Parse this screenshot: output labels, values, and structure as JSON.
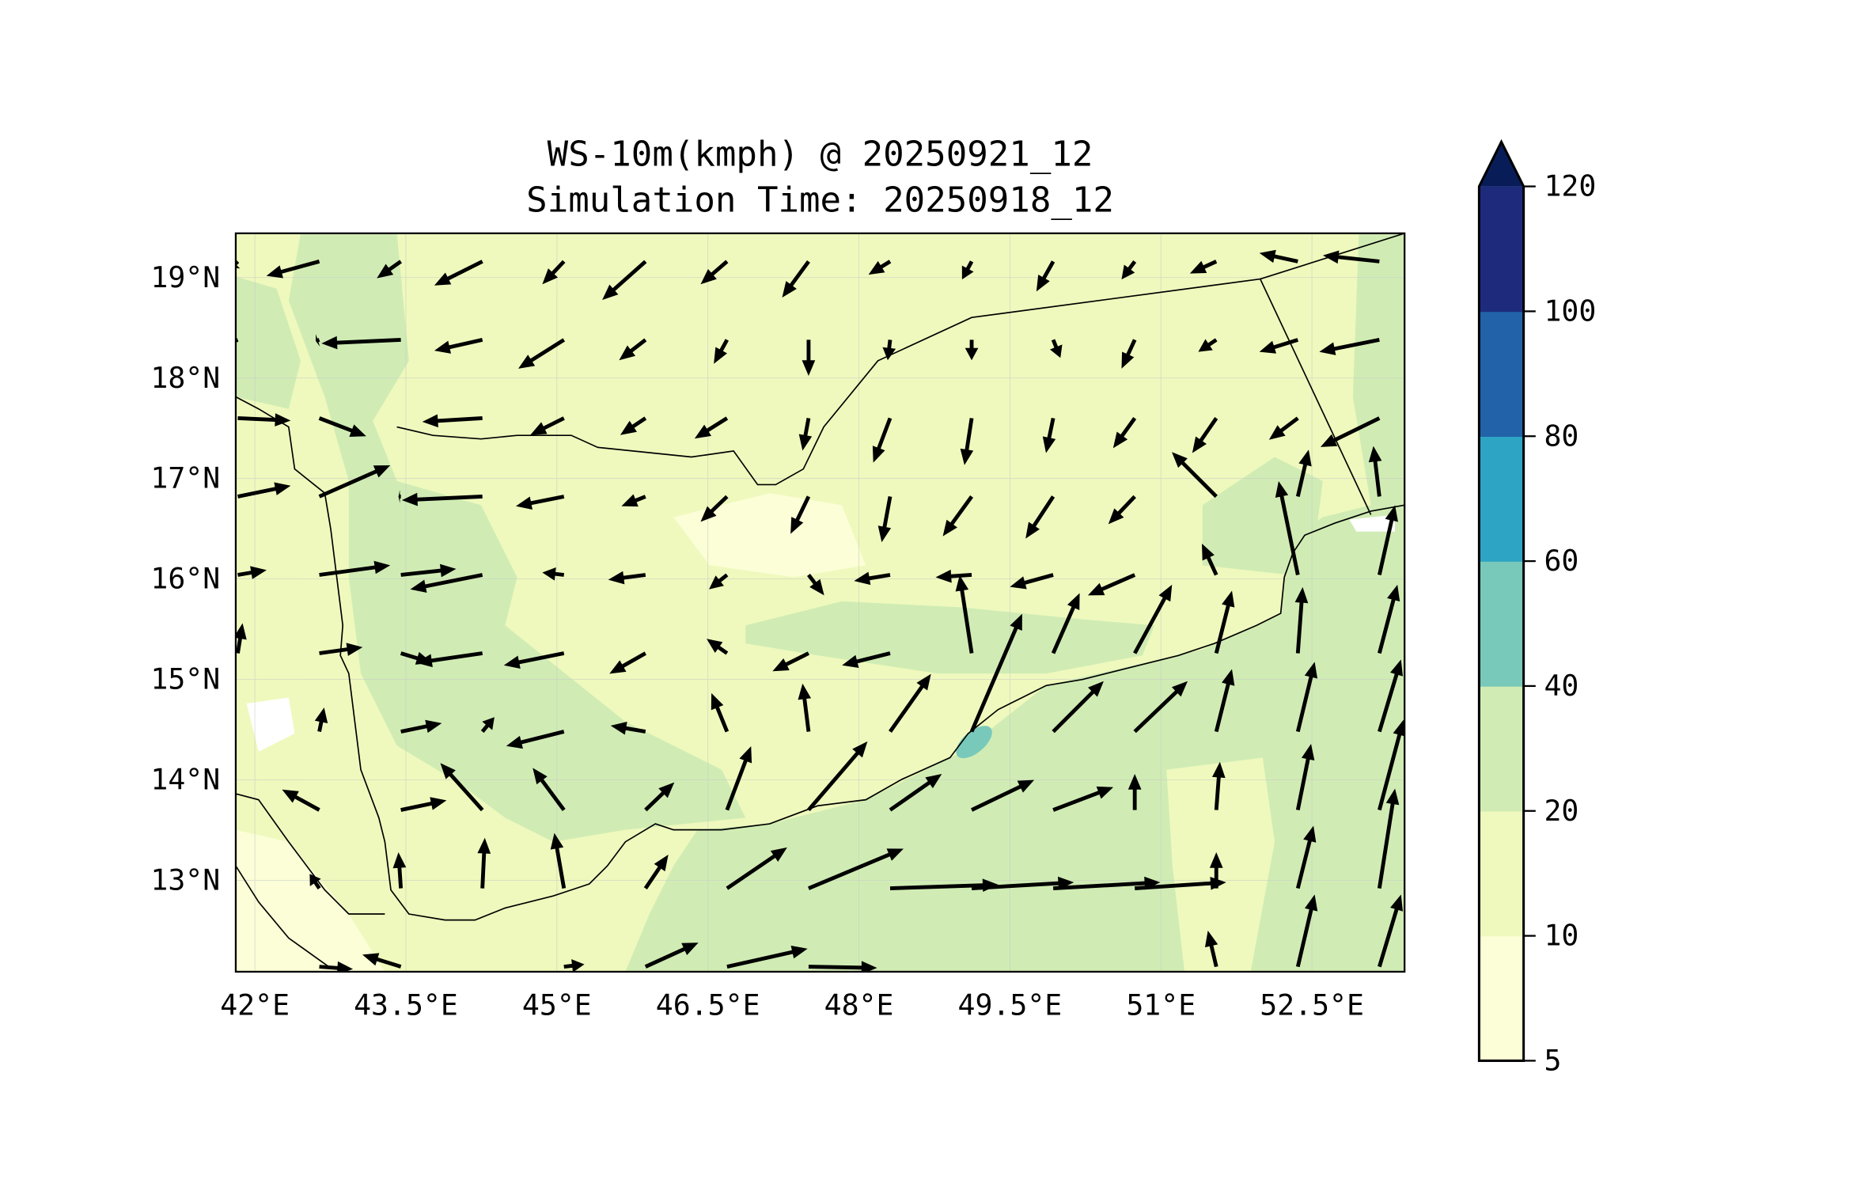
{
  "chart_data": {
    "type": "quiver-contourf-map",
    "title": "WS-10m(kmph) @ 20250921_12",
    "subtitle": "Simulation Time: 20250918_12",
    "xlim": [
      41.81,
      53.42
    ],
    "ylim": [
      12.09,
      19.44
    ],
    "grid": true,
    "x_ticks": [
      {
        "value": 42,
        "label": "42°E"
      },
      {
        "value": 43.5,
        "label": "43.5°E"
      },
      {
        "value": 45,
        "label": "45°E"
      },
      {
        "value": 46.5,
        "label": "46.5°E"
      },
      {
        "value": 48,
        "label": "48°E"
      },
      {
        "value": 49.5,
        "label": "49.5°E"
      },
      {
        "value": 51,
        "label": "51°E"
      },
      {
        "value": 52.5,
        "label": "52.5°E"
      }
    ],
    "y_ticks": [
      {
        "value": 19,
        "label": "19°N"
      },
      {
        "value": 18,
        "label": "18°N"
      },
      {
        "value": 17,
        "label": "17°N"
      },
      {
        "value": 16,
        "label": "16°N"
      },
      {
        "value": 15,
        "label": "15°N"
      },
      {
        "value": 14,
        "label": "14°N"
      },
      {
        "value": 13,
        "label": "13°N"
      }
    ],
    "colorbar": {
      "levels": [
        "5",
        "10",
        "20",
        "40",
        "60",
        "80",
        "100",
        "120"
      ],
      "colors": [
        "#fbfed6",
        "#eff9bd",
        "#d0ecb4",
        "#78c9ba",
        "#2ea4c4",
        "#2162a8",
        "#1e2b7c"
      ],
      "extend_color": "#081d58",
      "extend": "max"
    },
    "wind_grid": {
      "lon0": 41.83,
      "dlon": 0.81,
      "lat0": 19.16,
      "dlat": -0.78,
      "rows_uv": [
        [
          [
            -2.5,
            -2.5
          ],
          [
            -22,
            -6
          ],
          [
            -10,
            -7
          ],
          [
            -20,
            -10
          ],
          [
            -9,
            -9.5
          ],
          [
            -18,
            -16
          ],
          [
            -11,
            -9.5
          ],
          [
            -11,
            -15
          ],
          [
            -9,
            -5.5
          ],
          [
            -4,
            -7.5
          ],
          [
            -7,
            -12.5
          ],
          [
            -5.5,
            -7.5
          ],
          [
            -11,
            -5
          ],
          [
            -16,
            3.5
          ],
          [
            -23.5,
            2.5
          ]
        ],
        [
          [
            -6,
            -2.5
          ],
          [
            -1.5,
            -0.5
          ],
          [
            -33,
            -1.5
          ],
          [
            -20,
            -4.5
          ],
          [
            -19,
            -12
          ],
          [
            -11,
            -8.5
          ],
          [
            -5.5,
            -10
          ],
          [
            0,
            -15
          ],
          [
            -1,
            -8.5
          ],
          [
            0,
            -8.5
          ],
          [
            3,
            -7.5
          ],
          [
            -5.5,
            -12
          ],
          [
            -7.5,
            -5
          ],
          [
            -16,
            -5
          ],
          [
            -25,
            -5
          ]
        ],
        [
          [
            22,
            -1
          ],
          [
            19.5,
            -7.5
          ],
          [
            0,
            0
          ],
          [
            -25,
            -1.5
          ],
          [
            -14,
            -7
          ],
          [
            -10.5,
            -7
          ],
          [
            -13.5,
            -8.5
          ],
          [
            -2.5,
            -13.5
          ],
          [
            -7,
            -18.5
          ],
          [
            -3,
            -19.5
          ],
          [
            -3,
            -14.5
          ],
          [
            -9,
            -12.5
          ],
          [
            -10,
            -14.5
          ],
          [
            -12,
            -9
          ],
          [
            -24.5,
            -12
          ]
        ],
        [
          [
            22,
            4.5
          ],
          [
            29.5,
            13
          ],
          [
            -1,
            0
          ],
          [
            -33.5,
            -1.5
          ],
          [
            -20,
            -4
          ],
          [
            -10,
            -4
          ],
          [
            -11,
            -10.5
          ],
          [
            -7.5,
            -15.5
          ],
          [
            -3.5,
            -19
          ],
          [
            -12,
            -16.5
          ],
          [
            -11.5,
            -17.5
          ],
          [
            -11,
            -11.5
          ],
          [
            -18.5,
            18.5
          ],
          [
            4.5,
            19.5
          ],
          [
            -2.5,
            21
          ]
        ],
        [
          [
            12,
            2
          ],
          [
            29.5,
            4
          ],
          [
            23,
            2.5
          ],
          [
            -30,
            -6
          ],
          [
            -9,
            1
          ],
          [
            -15.5,
            -2
          ],
          [
            -7.5,
            -6
          ],
          [
            6.5,
            -8.5
          ],
          [
            -15,
            -2.5
          ],
          [
            -15,
            -1
          ],
          [
            -18,
            -5
          ],
          [
            -19.5,
            -8.5
          ],
          [
            -6,
            13
          ],
          [
            -8,
            39
          ],
          [
            6.5,
            29
          ]
        ],
        [
          [
            2,
            12.5
          ],
          [
            18,
            2.5
          ],
          [
            13,
            -4
          ],
          [
            -27.5,
            -4
          ],
          [
            -25,
            -5
          ],
          [
            -15,
            -8.5
          ],
          [
            -8.5,
            6
          ],
          [
            -15,
            -7.5
          ],
          [
            -20,
            -5
          ],
          [
            -5,
            32.5
          ],
          [
            11,
            25
          ],
          [
            15.5,
            28.5
          ],
          [
            6.5,
            26
          ],
          [
            2,
            27.5
          ],
          [
            7.5,
            28.5
          ]
        ],
        [
          [
            0,
            0
          ],
          [
            2,
            10
          ],
          [
            17,
            3.5
          ],
          [
            5,
            6
          ],
          [
            -24,
            -6
          ],
          [
            -14.5,
            2.5
          ],
          [
            -6.5,
            16
          ],
          [
            -2.5,
            20
          ],
          [
            17,
            24
          ],
          [
            21,
            49
          ],
          [
            21,
            21
          ],
          [
            22,
            21
          ],
          [
            6.5,
            26
          ],
          [
            7,
            29
          ],
          [
            9,
            30
          ]
        ],
        [
          [
            0,
            0
          ],
          [
            -15.5,
            8.5
          ],
          [
            19,
            4
          ],
          [
            -17.5,
            19.5
          ],
          [
            -13,
            17.5
          ],
          [
            12,
            11.5
          ],
          [
            10,
            26.5
          ],
          [
            24.5,
            28.5
          ],
          [
            21.5,
            15
          ],
          [
            26,
            12.5
          ],
          [
            25,
            9.5
          ],
          [
            0,
            15
          ],
          [
            1.5,
            20
          ],
          [
            5.5,
            27.5
          ],
          [
            10,
            37.5
          ]
        ],
        [
          [
            0,
            0
          ],
          [
            -4,
            6
          ],
          [
            -1,
            15
          ],
          [
            1,
            21
          ],
          [
            -4,
            23
          ],
          [
            9.5,
            14
          ],
          [
            25,
            17
          ],
          [
            39.5,
            16.5
          ],
          [
            45,
            1.5
          ],
          [
            42.5,
            2.5
          ],
          [
            44.5,
            2.5
          ],
          [
            38,
            2.5
          ],
          [
            0,
            15
          ],
          [
            6.5,
            26
          ],
          [
            6.5,
            41.5
          ]
        ],
        [
          [
            0,
            0
          ],
          [
            14,
            -1
          ],
          [
            -16,
            5
          ],
          [
            0,
            0
          ],
          [
            8.5,
            1
          ],
          [
            22,
            10
          ],
          [
            33.5,
            7.5
          ],
          [
            28.5,
            -0.5
          ],
          [
            0,
            0
          ],
          [
            0,
            0
          ],
          [
            0,
            0
          ],
          [
            0,
            0
          ],
          [
            -3.5,
            15
          ],
          [
            7,
            30
          ],
          [
            9,
            30
          ]
        ]
      ]
    }
  }
}
